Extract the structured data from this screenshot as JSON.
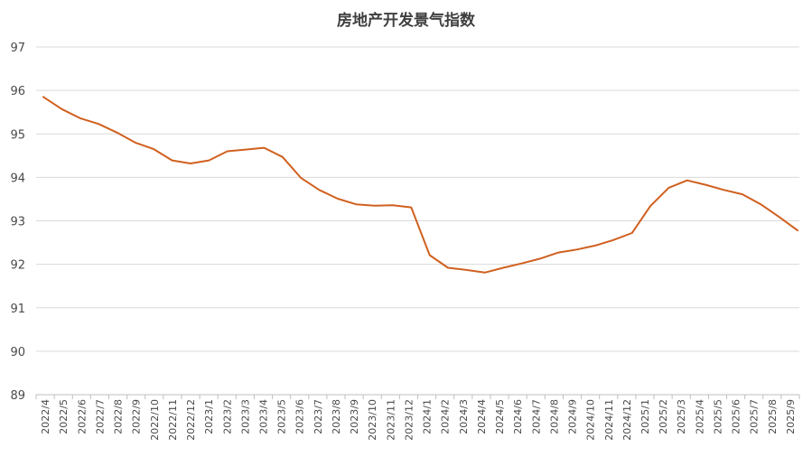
{
  "chart_data": {
    "type": "line",
    "title": "房地产开发景气指数",
    "xlabel": "",
    "ylabel": "",
    "ylim": [
      89,
      97
    ],
    "yticks": [
      89,
      90,
      91,
      92,
      93,
      94,
      95,
      96,
      97
    ],
    "grid": true,
    "legend": "none",
    "colors": {
      "series": "#d0601f",
      "grid": "#d9d9d9",
      "axis": "#bfbfbf"
    },
    "categories": [
      "2022/4",
      "2022/5",
      "2022/6",
      "2022/7",
      "2022/8",
      "2022/9",
      "2022/10",
      "2022/11",
      "2022/12",
      "2023/1",
      "2023/2",
      "2023/3",
      "2023/4",
      "2023/5",
      "2023/6",
      "2023/7",
      "2023/8",
      "2023/9",
      "2023/10",
      "2023/11",
      "2023/12",
      "2024/1",
      "2024/2",
      "2024/3",
      "2024/4",
      "2024/5",
      "2024/6",
      "2024/7",
      "2024/8",
      "2024/9",
      "2024/10",
      "2024/11",
      "2024/12",
      "2025/1",
      "2025/2",
      "2025/3",
      "2025/4",
      "2025/5",
      "2025/6",
      "2025/7",
      "2025/8",
      "2025/9"
    ],
    "series": [
      {
        "name": "",
        "values": [
          95.85,
          95.57,
          95.36,
          95.23,
          95.03,
          94.8,
          94.65,
          94.39,
          94.32,
          94.39,
          94.6,
          94.64,
          94.68,
          94.47,
          93.99,
          93.71,
          93.51,
          93.38,
          93.35,
          93.36,
          93.31,
          92.21,
          91.92,
          91.87,
          91.81,
          91.92,
          92.02,
          92.13,
          92.27,
          92.34,
          92.43,
          92.56,
          92.72,
          93.34,
          93.76,
          93.93,
          93.83,
          93.71,
          93.61,
          93.38,
          93.09,
          92.78
        ]
      }
    ]
  }
}
